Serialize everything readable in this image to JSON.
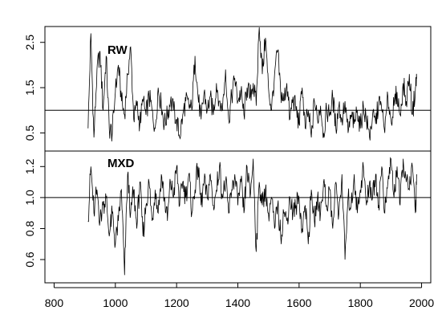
{
  "chart_data": [
    {
      "type": "line",
      "panel_label": "RW",
      "xlim": [
        770,
        2030
      ],
      "ylim": [
        0.1,
        2.85
      ],
      "yticks": [
        0.5,
        1.5,
        2.5
      ],
      "ytick_labels": [
        "0.5",
        "1.5",
        "2.5"
      ],
      "reference_line": 1.0,
      "x_start": 911,
      "x_end": 1984,
      "series": [
        {
          "x": [
            911,
            920,
            930,
            940,
            950,
            960,
            970,
            980,
            990,
            1000,
            1010,
            1020,
            1030,
            1040,
            1050,
            1060,
            1070,
            1080,
            1090,
            1100,
            1110,
            1120,
            1130,
            1140,
            1150,
            1160,
            1170,
            1180,
            1190,
            1200,
            1210,
            1220,
            1230,
            1240,
            1250,
            1260,
            1270,
            1280,
            1290,
            1300,
            1310,
            1320,
            1330,
            1340,
            1350,
            1360,
            1370,
            1380,
            1390,
            1400,
            1410,
            1420,
            1430,
            1440,
            1450,
            1460,
            1470,
            1480,
            1490,
            1500,
            1510,
            1520,
            1530,
            1540,
            1550,
            1560,
            1570,
            1580,
            1590,
            1600,
            1610,
            1620,
            1630,
            1640,
            1650,
            1660,
            1670,
            1680,
            1690,
            1700,
            1710,
            1720,
            1730,
            1740,
            1750,
            1760,
            1770,
            1780,
            1790,
            1800,
            1810,
            1820,
            1830,
            1840,
            1850,
            1860,
            1870,
            1880,
            1890,
            1900,
            1910,
            1920,
            1930,
            1940,
            1950,
            1960,
            1970,
            1980,
            1984
          ],
          "values": [
            0.6,
            2.7,
            0.4,
            1.9,
            2.3,
            1.0,
            2.2,
            0.6,
            0.5,
            1.4,
            2.0,
            1.2,
            0.9,
            1.8,
            2.4,
            0.8,
            1.1,
            0.7,
            1.2,
            0.9,
            1.3,
            1.0,
            0.6,
            1.5,
            1.1,
            0.7,
            0.9,
            1.2,
            1.0,
            0.8,
            0.4,
            0.9,
            1.2,
            1.1,
            1.0,
            2.2,
            1.3,
            0.8,
            1.4,
            1.0,
            1.3,
            0.9,
            1.6,
            1.2,
            1.0,
            1.9,
            0.8,
            1.3,
            1.7,
            1.2,
            1.4,
            0.9,
            1.5,
            1.3,
            1.6,
            1.1,
            2.9,
            1.8,
            2.6,
            1.5,
            1.0,
            1.8,
            2.3,
            1.4,
            1.2,
            1.6,
            0.8,
            1.3,
            1.0,
            0.7,
            1.5,
            0.6,
            1.0,
            0.4,
            1.2,
            0.8,
            1.1,
            0.5,
            1.0,
            0.9,
            1.3,
            0.6,
            1.1,
            0.8,
            1.2,
            0.5,
            0.9,
            0.7,
            1.0,
            0.6,
            1.1,
            0.8,
            0.4,
            0.9,
            0.7,
            1.2,
            1.0,
            0.5,
            1.3,
            0.8,
            1.1,
            1.4,
            0.9,
            1.6,
            1.2,
            1.8,
            0.9,
            1.5,
            1.7
          ]
        }
      ]
    },
    {
      "type": "line",
      "panel_label": "MXD",
      "xlim": [
        770,
        2030
      ],
      "ylim": [
        0.45,
        1.3
      ],
      "xticks": [
        800,
        1000,
        1200,
        1400,
        1600,
        1800,
        2000
      ],
      "xtick_labels": [
        "800",
        "1000",
        "1200",
        "1400",
        "1600",
        "1800",
        "2000"
      ],
      "yticks": [
        0.6,
        0.8,
        1.0,
        1.2
      ],
      "ytick_labels": [
        "0.6",
        "0.8",
        "1.0",
        "1.2"
      ],
      "reference_line": 1.0,
      "x_start": 911,
      "x_end": 1984,
      "series": [
        {
          "x": [
            911,
            920,
            930,
            940,
            950,
            960,
            970,
            980,
            990,
            1000,
            1010,
            1020,
            1030,
            1040,
            1050,
            1060,
            1070,
            1080,
            1090,
            1100,
            1110,
            1120,
            1130,
            1140,
            1150,
            1160,
            1170,
            1180,
            1190,
            1200,
            1210,
            1220,
            1230,
            1240,
            1250,
            1260,
            1270,
            1280,
            1290,
            1300,
            1310,
            1320,
            1330,
            1340,
            1350,
            1360,
            1370,
            1380,
            1390,
            1400,
            1410,
            1420,
            1430,
            1440,
            1450,
            1460,
            1470,
            1480,
            1490,
            1500,
            1510,
            1520,
            1530,
            1540,
            1550,
            1560,
            1570,
            1580,
            1590,
            1600,
            1610,
            1620,
            1630,
            1640,
            1650,
            1660,
            1670,
            1680,
            1690,
            1700,
            1710,
            1720,
            1730,
            1740,
            1750,
            1760,
            1770,
            1780,
            1790,
            1800,
            1810,
            1820,
            1830,
            1840,
            1850,
            1860,
            1870,
            1880,
            1890,
            1900,
            1910,
            1920,
            1930,
            1940,
            1950,
            1960,
            1970,
            1980,
            1984
          ],
          "values": [
            0.85,
            1.2,
            0.9,
            1.05,
            0.85,
            0.95,
            1.0,
            0.75,
            0.9,
            0.7,
            0.85,
            1.05,
            0.5,
            1.15,
            0.9,
            1.05,
            0.8,
            1.1,
            0.75,
            0.95,
            1.1,
            0.85,
            1.05,
            0.9,
            1.15,
            1.0,
            0.85,
            1.1,
            1.0,
            1.2,
            0.95,
            1.1,
            1.0,
            1.15,
            0.9,
            1.05,
            1.2,
            0.95,
            1.1,
            1.0,
            1.15,
            0.95,
            1.05,
            1.2,
            1.0,
            1.1,
            0.9,
            1.05,
            1.15,
            0.95,
            1.1,
            0.9,
            1.2,
            1.0,
            1.25,
            0.65,
            1.1,
            0.95,
            1.05,
            0.9,
            1.0,
            0.8,
            0.95,
            0.75,
            0.9,
            0.85,
            1.0,
            0.9,
            0.95,
            1.0,
            0.8,
            0.95,
            0.7,
            1.05,
            0.85,
            1.0,
            0.9,
            1.1,
            0.95,
            1.05,
            0.8,
            1.1,
            0.9,
            1.15,
            0.6,
            1.0,
            0.95,
            1.15,
            0.9,
            1.05,
            1.2,
            0.95,
            1.1,
            1.0,
            1.15,
            0.95,
            1.2,
            0.9,
            1.1,
            1.25,
            1.0,
            1.2,
            0.95,
            1.25,
            1.1,
            1.05,
            1.2,
            0.9,
            1.15
          ]
        }
      ]
    }
  ]
}
